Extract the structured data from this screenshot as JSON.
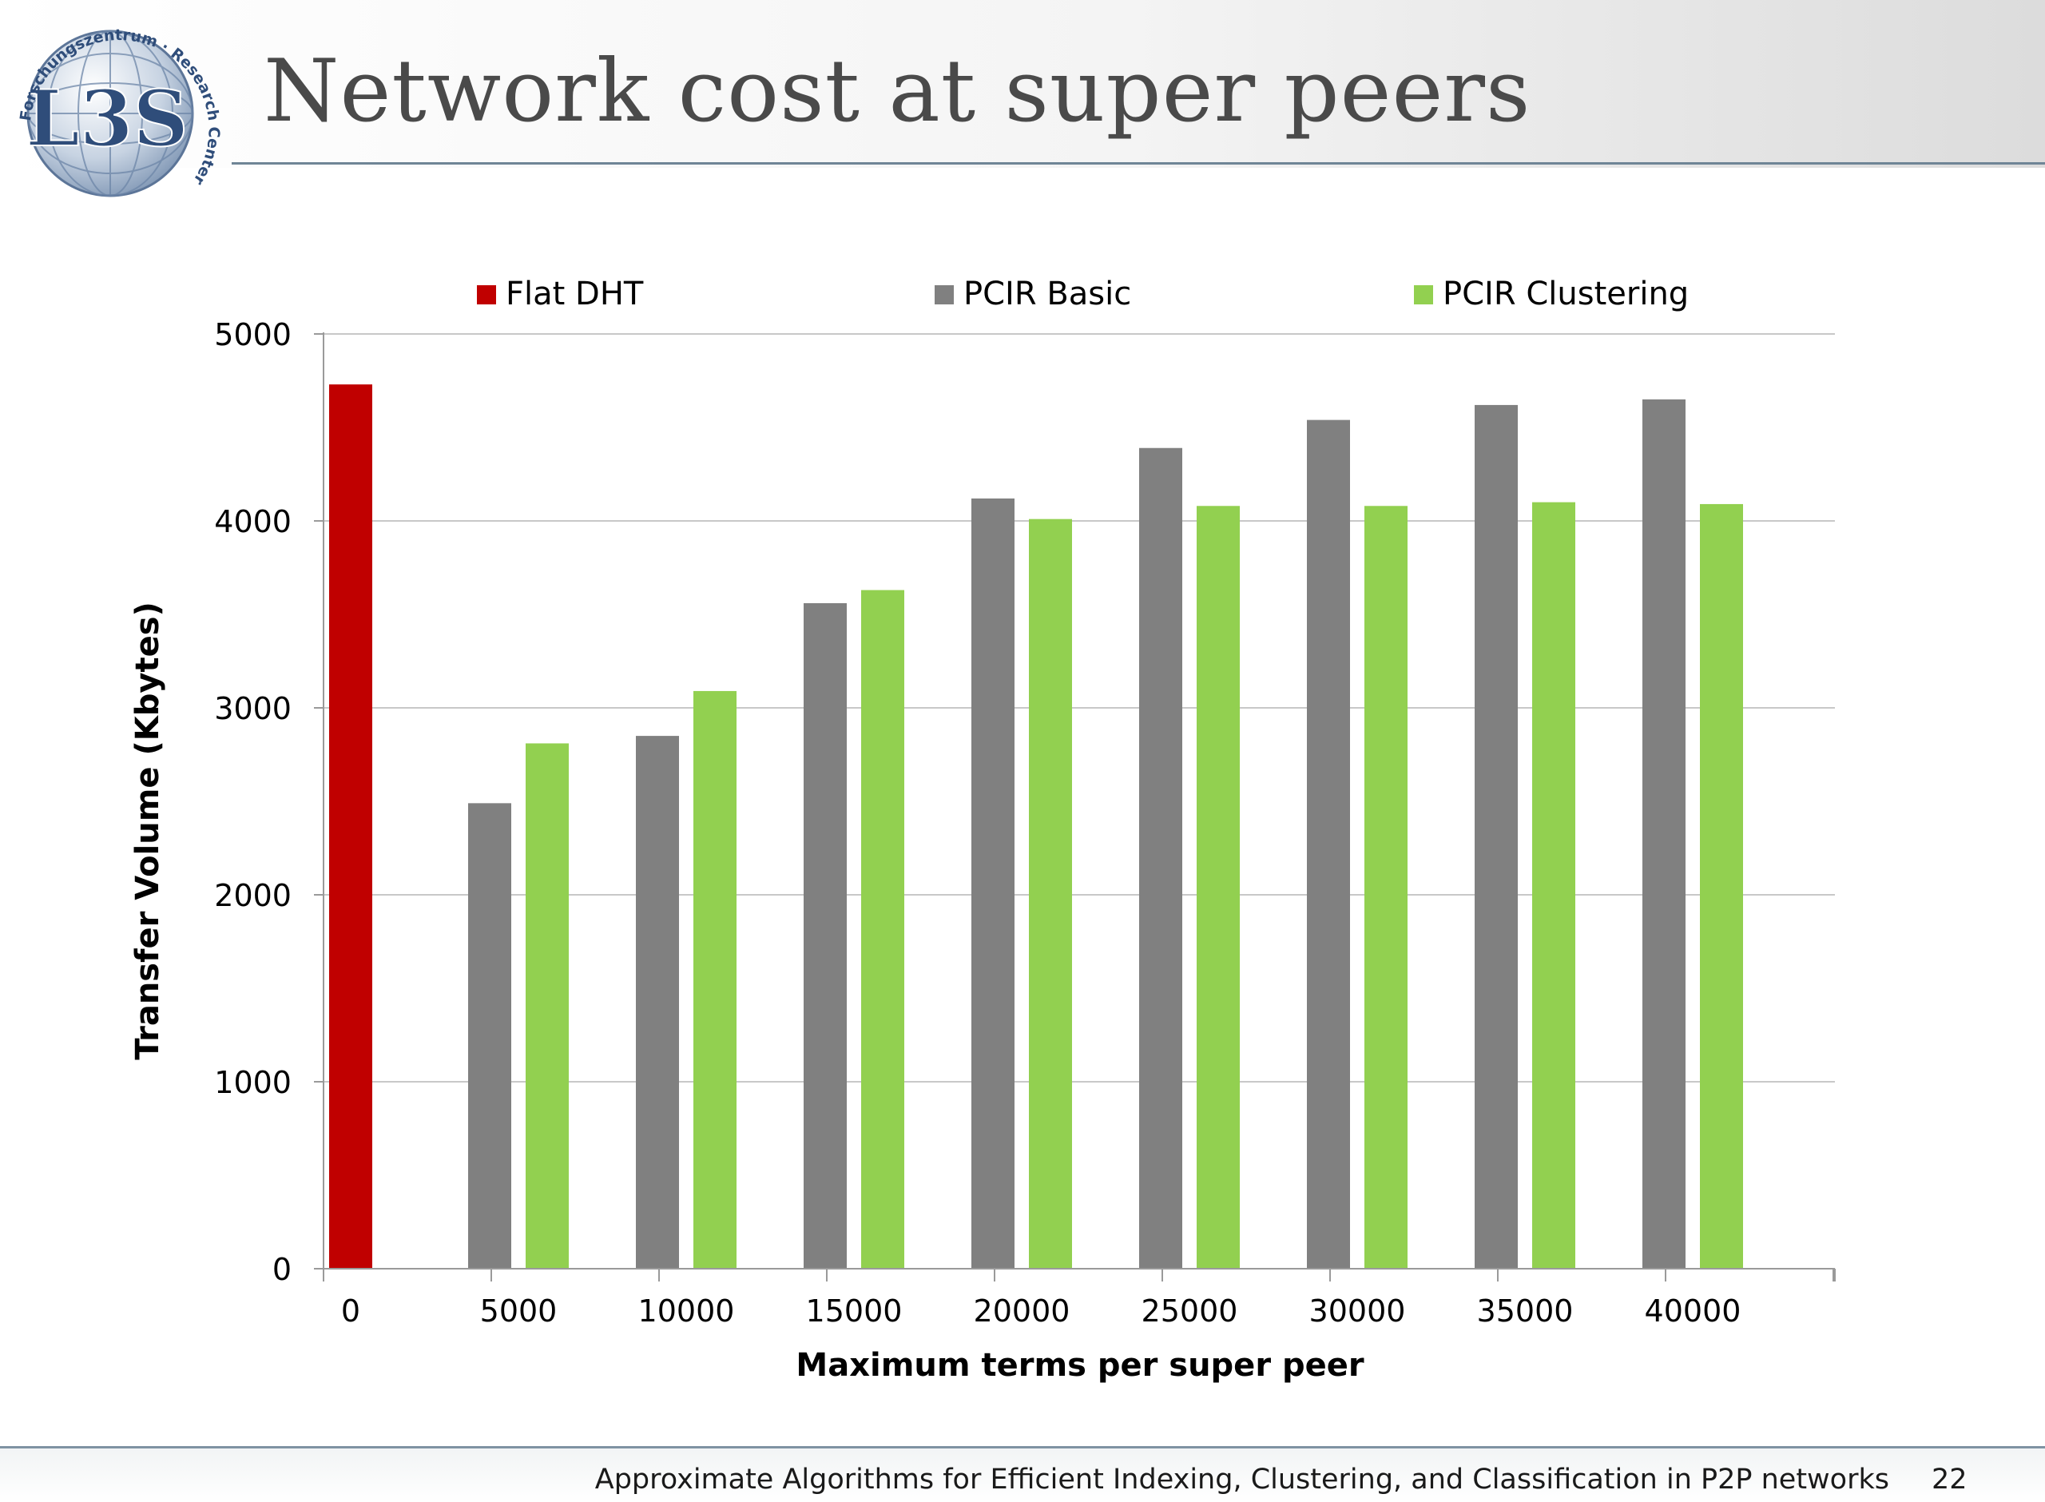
{
  "slide": {
    "title": "Network cost at super peers",
    "footer": "Approximate Algorithms for Efficient Indexing, Clustering, and Classification in P2P networks",
    "page_number": "22"
  },
  "logo": {
    "text": "L3S",
    "ring_text": "Forschungszentrum · Research Center"
  },
  "chart_data": {
    "type": "bar",
    "categories": [
      "0",
      "5000",
      "10000",
      "15000",
      "20000",
      "25000",
      "30000",
      "35000",
      "40000"
    ],
    "series": [
      {
        "name": "Flat DHT",
        "color": "#c00000",
        "values": [
          4730,
          null,
          null,
          null,
          null,
          null,
          null,
          null,
          null
        ]
      },
      {
        "name": "PCIR Basic",
        "color": "#808080",
        "values": [
          null,
          2490,
          2850,
          3560,
          4120,
          4390,
          4540,
          4620,
          4650
        ]
      },
      {
        "name": "PCIR Clustering",
        "color": "#92d050",
        "values": [
          null,
          2810,
          3090,
          3630,
          4010,
          4080,
          4080,
          4100,
          4090
        ]
      }
    ],
    "xlabel": "Maximum terms per super peer",
    "ylabel": "Transfer Volume (Kbytes)",
    "ylim": [
      0,
      5000
    ],
    "yticks": [
      0,
      1000,
      2000,
      3000,
      4000,
      5000
    ],
    "grid": true,
    "legend_position": "top"
  }
}
